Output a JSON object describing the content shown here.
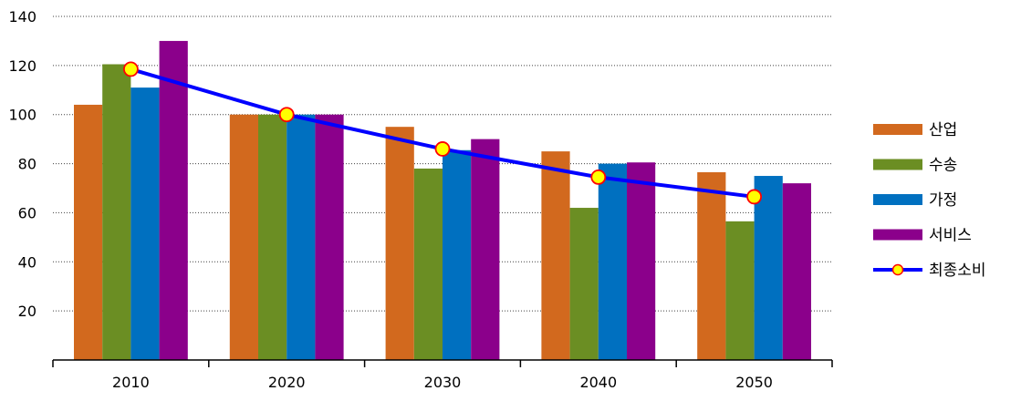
{
  "chart_data": {
    "type": "bar",
    "title": "",
    "xlabel": "",
    "ylabel": "",
    "categories": [
      "2010",
      "2020",
      "2030",
      "2040",
      "2050"
    ],
    "ylim": [
      0,
      140
    ],
    "yticks": [
      20,
      40,
      60,
      80,
      100,
      120,
      140
    ],
    "grid": true,
    "grid_style": "dotted",
    "legend_position": "right",
    "series": [
      {
        "name": "산업",
        "type": "bar",
        "color": "#D2691E",
        "values": [
          104,
          100,
          95,
          85,
          76.5
        ]
      },
      {
        "name": "수송",
        "type": "bar",
        "color": "#6B8E23",
        "values": [
          120.5,
          100,
          78,
          62,
          56.5
        ]
      },
      {
        "name": "가정",
        "type": "bar",
        "color": "#0070C0",
        "values": [
          111,
          100,
          85.5,
          80,
          75
        ]
      },
      {
        "name": "서비스",
        "type": "bar",
        "color": "#8B008B",
        "values": [
          130,
          100,
          90,
          80.5,
          72
        ]
      },
      {
        "name": "최종소비",
        "type": "line",
        "color": "#0000FF",
        "marker_color": "#FFFF00",
        "marker_edge": "#FF0000",
        "values": [
          118.5,
          100,
          86,
          74.5,
          66.5
        ]
      }
    ]
  }
}
